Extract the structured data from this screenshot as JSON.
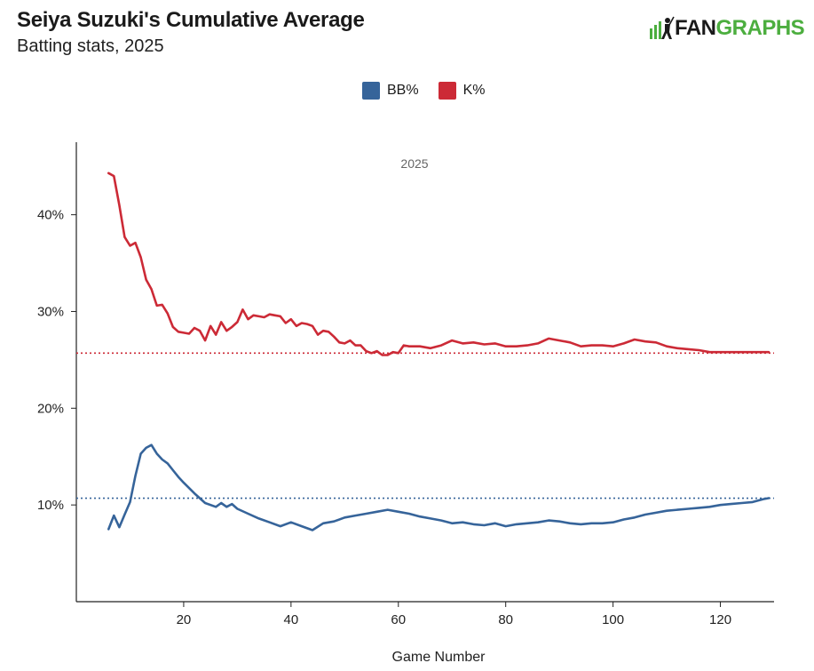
{
  "header": {
    "title": "Seiya Suzuki's Cumulative Average",
    "subtitle": "Batting stats, 2025"
  },
  "logo": {
    "prefix": "FAN",
    "suffix": "GRAPHS",
    "prefix_color": "#1a1a1a",
    "suffix_color": "#4cae3f"
  },
  "chart_data": {
    "type": "line",
    "title": "Seiya Suzuki's Cumulative Average",
    "subtitle": "Batting stats, 2025",
    "xlabel": "Game Number",
    "ylabel": "",
    "xlim": [
      0,
      130
    ],
    "ylim": [
      0.0,
      0.475
    ],
    "x_ticks": [
      20,
      40,
      60,
      80,
      100,
      120
    ],
    "y_ticks": [
      0.1,
      0.2,
      0.3,
      0.4
    ],
    "y_tick_labels": [
      "10%",
      "20%",
      "30%",
      "40%"
    ],
    "annotation": "2025",
    "legend_position": "top-center",
    "grid": false,
    "series": [
      {
        "name": "BB%",
        "color": "#36649a",
        "reference_line": 0.107,
        "x": [
          6,
          7,
          8,
          9,
          10,
          11,
          12,
          13,
          14,
          15,
          16,
          17,
          18,
          19,
          20,
          22,
          24,
          26,
          27,
          28,
          29,
          30,
          32,
          34,
          36,
          38,
          40,
          42,
          44,
          46,
          48,
          50,
          52,
          54,
          56,
          58,
          60,
          62,
          64,
          66,
          68,
          70,
          72,
          74,
          76,
          78,
          80,
          82,
          84,
          86,
          88,
          90,
          92,
          94,
          96,
          98,
          100,
          102,
          104,
          106,
          108,
          110,
          112,
          114,
          116,
          118,
          120,
          122,
          124,
          126,
          128,
          129
        ],
        "values": [
          0.075,
          0.089,
          0.077,
          0.09,
          0.103,
          0.13,
          0.153,
          0.159,
          0.162,
          0.153,
          0.147,
          0.143,
          0.136,
          0.129,
          0.123,
          0.112,
          0.102,
          0.098,
          0.102,
          0.098,
          0.101,
          0.096,
          0.091,
          0.086,
          0.082,
          0.078,
          0.082,
          0.078,
          0.074,
          0.081,
          0.083,
          0.087,
          0.089,
          0.091,
          0.093,
          0.095,
          0.093,
          0.091,
          0.088,
          0.086,
          0.084,
          0.081,
          0.082,
          0.08,
          0.079,
          0.081,
          0.078,
          0.08,
          0.081,
          0.082,
          0.084,
          0.083,
          0.081,
          0.08,
          0.081,
          0.081,
          0.082,
          0.085,
          0.087,
          0.09,
          0.092,
          0.094,
          0.095,
          0.096,
          0.097,
          0.098,
          0.1,
          0.101,
          0.102,
          0.103,
          0.106,
          0.107
        ]
      },
      {
        "name": "K%",
        "color": "#cc2a36",
        "reference_line": 0.257,
        "x": [
          6,
          7,
          8,
          9,
          10,
          11,
          12,
          13,
          14,
          15,
          16,
          17,
          18,
          19,
          20,
          21,
          22,
          23,
          24,
          25,
          26,
          27,
          28,
          29,
          30,
          31,
          32,
          33,
          34,
          35,
          36,
          37,
          38,
          39,
          40,
          41,
          42,
          43,
          44,
          45,
          46,
          47,
          48,
          49,
          50,
          51,
          52,
          53,
          54,
          55,
          56,
          57,
          58,
          59,
          60,
          61,
          62,
          64,
          66,
          68,
          70,
          72,
          74,
          76,
          78,
          80,
          82,
          84,
          86,
          88,
          90,
          92,
          94,
          96,
          98,
          100,
          102,
          104,
          106,
          108,
          110,
          112,
          114,
          116,
          118,
          120,
          122,
          124,
          126,
          128,
          129
        ],
        "values": [
          0.443,
          0.44,
          0.41,
          0.377,
          0.368,
          0.371,
          0.356,
          0.333,
          0.323,
          0.306,
          0.307,
          0.298,
          0.284,
          0.279,
          0.278,
          0.277,
          0.283,
          0.28,
          0.27,
          0.285,
          0.276,
          0.289,
          0.28,
          0.284,
          0.289,
          0.302,
          0.292,
          0.296,
          0.295,
          0.294,
          0.297,
          0.296,
          0.295,
          0.288,
          0.292,
          0.285,
          0.288,
          0.287,
          0.285,
          0.276,
          0.28,
          0.279,
          0.274,
          0.268,
          0.267,
          0.27,
          0.265,
          0.265,
          0.259,
          0.257,
          0.259,
          0.255,
          0.255,
          0.258,
          0.257,
          0.265,
          0.264,
          0.264,
          0.262,
          0.265,
          0.27,
          0.267,
          0.268,
          0.266,
          0.267,
          0.264,
          0.264,
          0.265,
          0.267,
          0.272,
          0.27,
          0.268,
          0.264,
          0.265,
          0.265,
          0.264,
          0.267,
          0.271,
          0.269,
          0.268,
          0.264,
          0.262,
          0.261,
          0.26,
          0.258,
          0.258,
          0.258,
          0.258,
          0.258,
          0.258,
          0.258
        ]
      }
    ]
  }
}
